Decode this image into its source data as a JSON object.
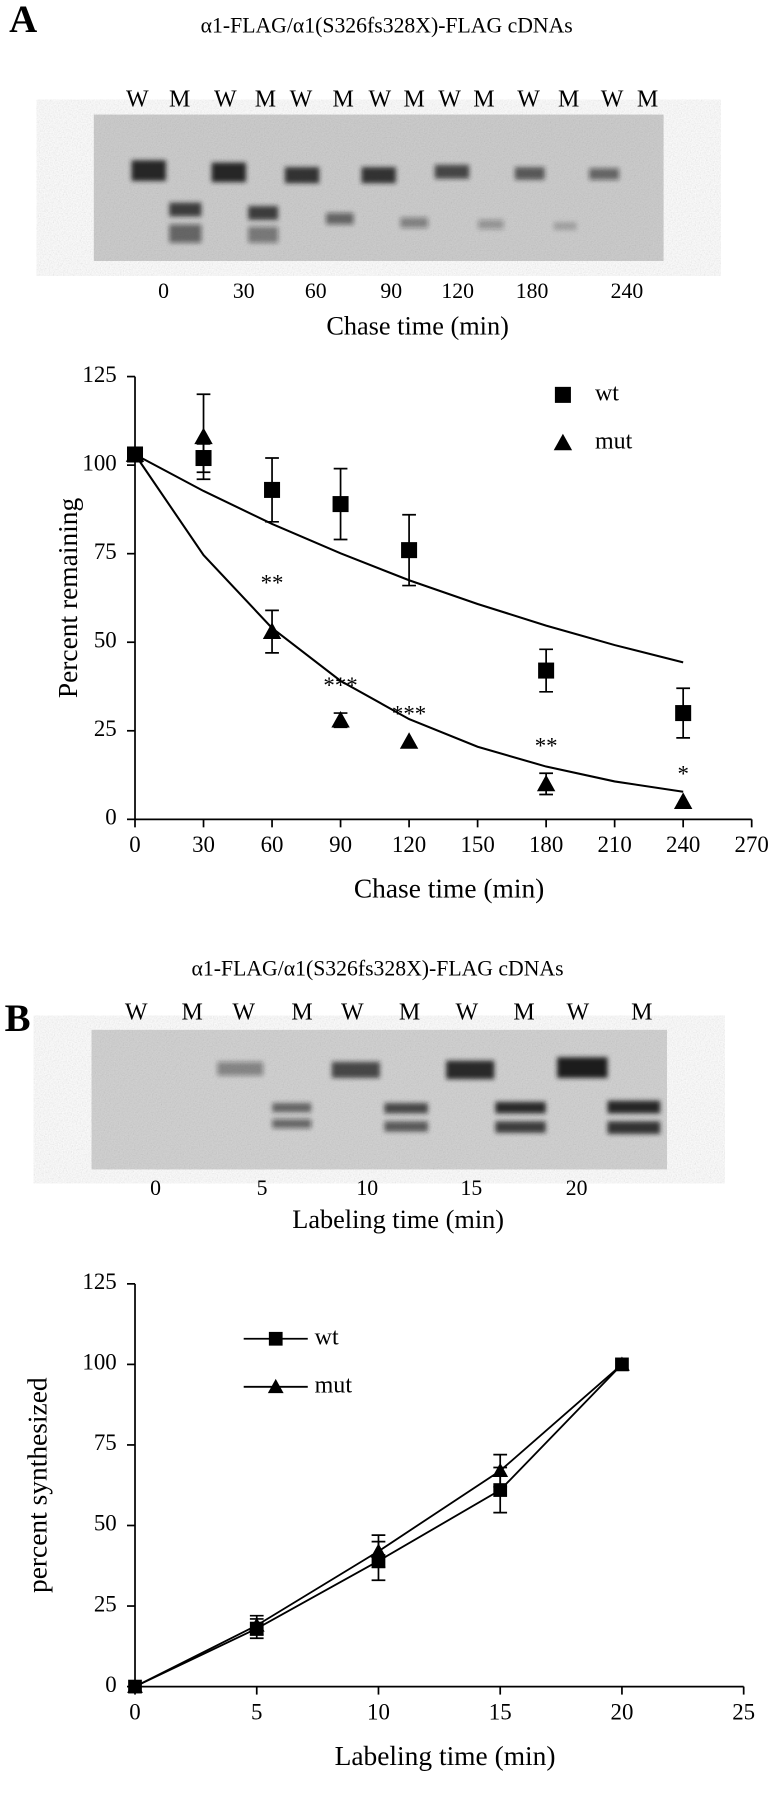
{
  "panels": [
    {
      "letter": "A",
      "gel": {
        "title": "α1-FLAG/α1(S326fs328X)-FLAG cDNAs",
        "lanes": [
          "W",
          "M",
          "W",
          "M",
          "W",
          "M",
          "W",
          "M",
          "W",
          "M",
          "W",
          "M",
          "W",
          "M"
        ],
        "times": [
          "0",
          "30",
          "60",
          "90",
          "120",
          "180",
          "240"
        ],
        "xlabel": "Chase time (min)"
      }
    },
    {
      "letter": "B",
      "gel": {
        "title": "α1-FLAG/α1(S326fs328X)-FLAG cDNAs",
        "lanes": [
          "W",
          "M",
          "W",
          "M",
          "W",
          "M",
          "W",
          "M",
          "W",
          "M"
        ],
        "times": [
          "0",
          "5",
          "10",
          "15",
          "20"
        ],
        "xlabel": "Labeling  time (min)"
      }
    }
  ],
  "chart_data": [
    {
      "type": "scatter",
      "xlabel": "Chase time (min)",
      "ylabel": "Percent remaining",
      "xlim": [
        0,
        270
      ],
      "xticks": [
        0,
        30,
        60,
        90,
        120,
        150,
        180,
        210,
        240,
        270
      ],
      "ylim": [
        0,
        125
      ],
      "yticks": [
        0,
        25,
        50,
        75,
        100,
        125
      ],
      "legend": "upper right",
      "series": [
        {
          "name": "wt",
          "marker": "square",
          "color": "#000000",
          "x": [
            0,
            30,
            60,
            90,
            120,
            180,
            240
          ],
          "values": [
            103,
            102,
            93,
            89,
            76,
            42,
            30
          ],
          "errors": [
            null,
            4,
            9,
            10,
            10,
            6,
            7
          ],
          "fit": {
            "x": [
              0,
              30,
              60,
              90,
              120,
              150,
              180,
              210,
              240
            ],
            "values": [
              103,
              92.7,
              83.4,
              75.1,
              67.5,
              60.8,
              54.7,
              49.2,
              44.3
            ]
          }
        },
        {
          "name": "mut",
          "marker": "triangle",
          "color": "#000000",
          "x": [
            0,
            30,
            60,
            90,
            120,
            180,
            240
          ],
          "values": [
            103,
            108,
            53,
            28,
            22,
            10,
            5
          ],
          "errors": [
            null,
            12,
            6,
            2,
            null,
            3,
            null
          ],
          "fit": {
            "x": [
              0,
              30,
              60,
              90,
              120,
              150,
              180,
              210,
              240
            ],
            "values": [
              103,
              74.6,
              54.0,
              39.1,
              28.3,
              20.5,
              14.9,
              10.7,
              7.8
            ]
          }
        }
      ],
      "annotations": [
        {
          "text": "**",
          "x": 60
        },
        {
          "text": "***",
          "x": 90
        },
        {
          "text": "***",
          "x": 120
        },
        {
          "text": "**",
          "x": 180
        },
        {
          "text": "*",
          "x": 240
        }
      ]
    },
    {
      "type": "line",
      "xlabel": "Labeling  time (min)",
      "ylabel": "percent synthesized",
      "xlim": [
        0,
        25
      ],
      "xticks": [
        0,
        5,
        10,
        15,
        20,
        25
      ],
      "ylim": [
        0,
        125
      ],
      "yticks": [
        0,
        25,
        50,
        75,
        100,
        125
      ],
      "legend": "upper left",
      "series": [
        {
          "name": "wt",
          "marker": "square",
          "color": "#000000",
          "x": [
            0,
            5,
            10,
            15,
            20
          ],
          "values": [
            0,
            18,
            39,
            61,
            100
          ],
          "errors": [
            null,
            3,
            6,
            7,
            null
          ]
        },
        {
          "name": "mut",
          "marker": "triangle",
          "color": "#000000",
          "x": [
            0,
            5,
            10,
            15,
            20
          ],
          "values": [
            0,
            19,
            42,
            67,
            100
          ],
          "errors": [
            null,
            3,
            5,
            5,
            null
          ]
        }
      ]
    }
  ]
}
